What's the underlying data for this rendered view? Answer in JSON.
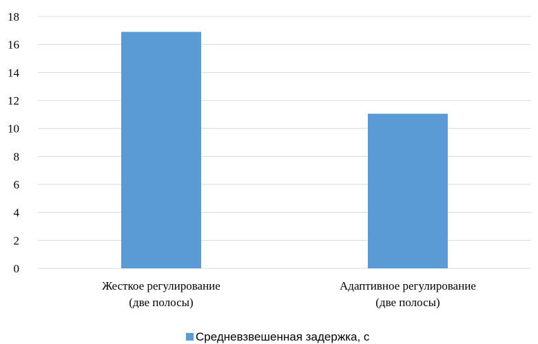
{
  "chart_data": {
    "type": "bar",
    "categories": [
      [
        "Жесткое регулирование",
        "(две полосы)"
      ],
      [
        "Адаптивное регулирование",
        "(две полосы)"
      ]
    ],
    "series": [
      {
        "name": "Средневзвешенная задержка, с",
        "values": [
          16.9,
          11.05
        ],
        "color": "#5b9bd5"
      }
    ],
    "ylim": [
      0,
      18
    ],
    "yticks": [
      "0",
      "2",
      "4",
      "6",
      "8",
      "10",
      "12",
      "14",
      "16",
      "18"
    ],
    "grid": true,
    "legend": "bottom"
  }
}
